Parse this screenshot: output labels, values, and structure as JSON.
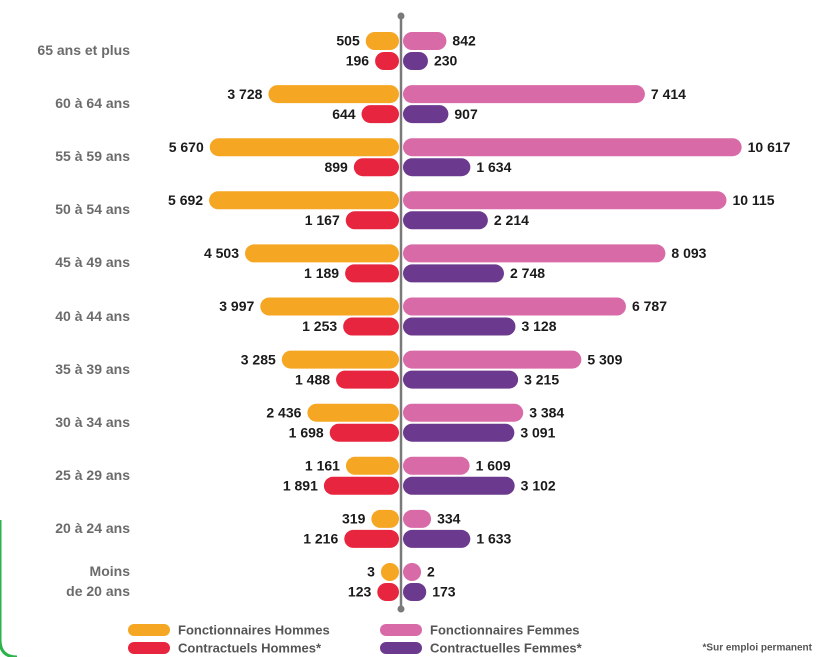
{
  "chart_data": {
    "type": "pyramid",
    "categories": [
      "65 ans et plus",
      "60 à 64 ans",
      "55 à 59 ans",
      "50 à 54 ans",
      "45 à 49 ans",
      "40 à 44 ans",
      "35 à 39 ans",
      "30 à 34 ans",
      "25 à 29 ans",
      "20 à 24 ans",
      "Moins\nde 20 ans"
    ],
    "series": [
      {
        "name": "Fonctionnaires Hommes",
        "color": "#f5a623",
        "values": [
          505,
          3728,
          5670,
          5692,
          4503,
          3997,
          3285,
          2436,
          1161,
          319,
          3
        ],
        "value_labels": [
          "505",
          "3 728",
          "5 670",
          "5 692",
          "4 503",
          "3 997",
          "3 285",
          "2 436",
          "1 161",
          "319",
          "3"
        ]
      },
      {
        "name": "Fonctionnaires Femmes",
        "color": "#d86aa8",
        "values": [
          842,
          7414,
          10617,
          10115,
          8093,
          6787,
          5309,
          3384,
          1609,
          334,
          2
        ],
        "value_labels": [
          "842",
          "7 414",
          "10 617",
          "10 115",
          "8 093",
          "6 787",
          "5 309",
          "3 384",
          "1 609",
          "334",
          "2"
        ]
      },
      {
        "name": "Contractuels Hommes*",
        "color": "#e8253f",
        "values": [
          196,
          644,
          899,
          1167,
          1189,
          1253,
          1488,
          1698,
          1891,
          1216,
          123
        ],
        "value_labels": [
          "196",
          "644",
          "899",
          "1 167",
          "1 189",
          "1 253",
          "1 488",
          "1 698",
          "1 891",
          "1 216",
          "123"
        ]
      },
      {
        "name": "Contractuelles Femmes*",
        "color": "#6b3a8e",
        "values": [
          230,
          907,
          1634,
          2214,
          2748,
          3128,
          3215,
          3091,
          3102,
          1633,
          173
        ],
        "value_labels": [
          "230",
          "907",
          "1 634",
          "2 214",
          "2 748",
          "3 128",
          "3 215",
          "3 091",
          "3 102",
          "1 633",
          "173"
        ]
      }
    ],
    "note": "*Sur emploi permanent"
  }
}
